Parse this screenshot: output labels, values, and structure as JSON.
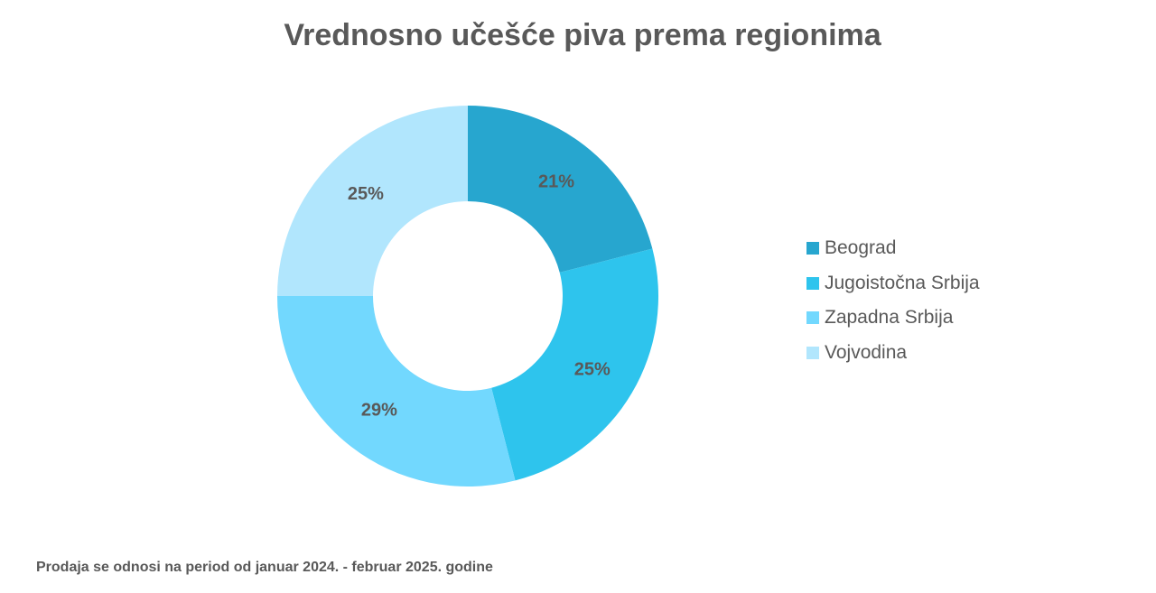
{
  "chart_data": {
    "type": "pie",
    "donut": true,
    "title": "Vrednosno učešće piva prema regionima",
    "categories": [
      "Beograd",
      "Jugoistočna Srbija",
      "Zapadna Srbija",
      "Vojvodina"
    ],
    "values": [
      21,
      25,
      29,
      25
    ],
    "value_labels": [
      "21%",
      "25%",
      "29%",
      "25%"
    ],
    "colors": [
      "#27A6CF",
      "#2EC4ED",
      "#72D8FE",
      "#B1E6FD"
    ],
    "legend_position": "right"
  },
  "footnote": "Prodaja se odnosi na period od januar 2024. - februar 2025. godine"
}
